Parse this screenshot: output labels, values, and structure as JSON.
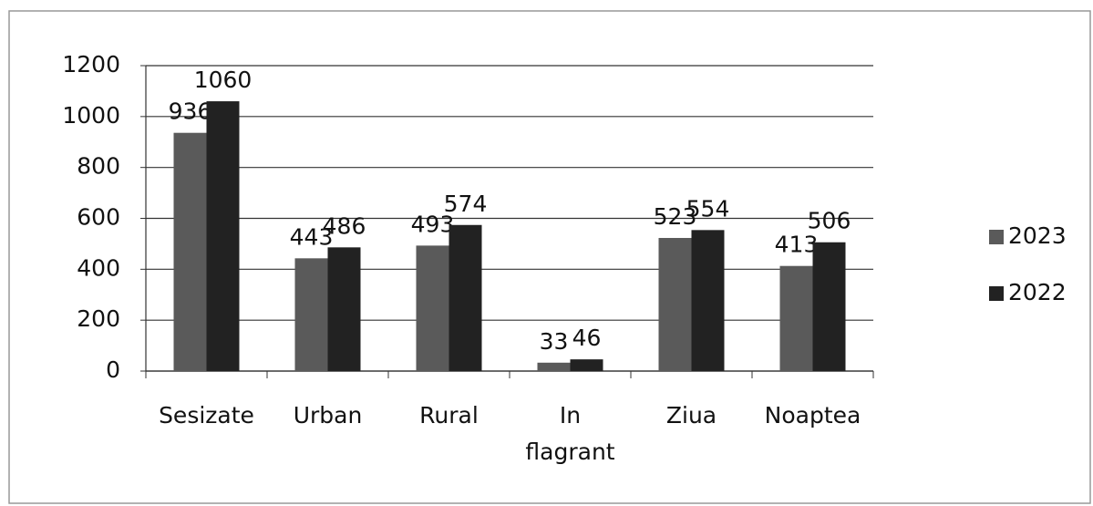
{
  "chart_data": {
    "type": "bar",
    "categories": [
      "Sesizate",
      "Urban",
      "Rural",
      "In flagrant",
      "Ziua",
      "Noaptea"
    ],
    "series": [
      {
        "name": "2023",
        "color": "#5a5a5a",
        "values": [
          936,
          443,
          493,
          33,
          523,
          413
        ]
      },
      {
        "name": "2022",
        "color": "#222222",
        "values": [
          1060,
          486,
          574,
          46,
          554,
          506
        ]
      }
    ],
    "ylim": [
      0,
      1200
    ],
    "yticks": [
      0,
      200,
      400,
      600,
      800,
      1000,
      1200
    ],
    "grid": true,
    "legend": "right"
  }
}
